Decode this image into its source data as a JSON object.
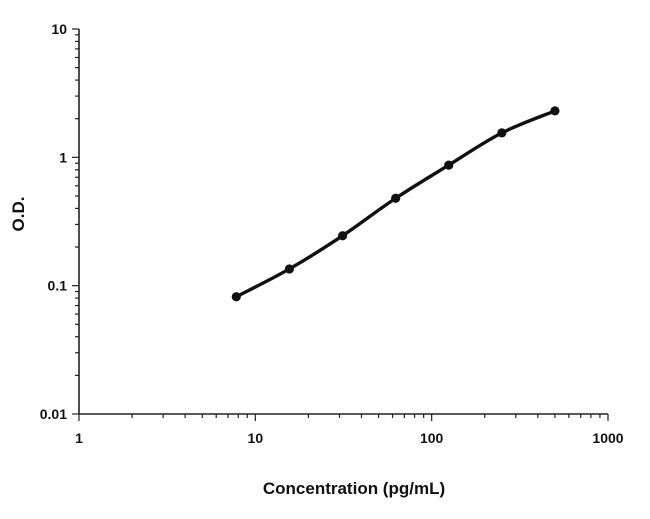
{
  "chart_data": {
    "type": "line",
    "title": "",
    "xlabel": "Concentration (pg/mL)",
    "ylabel": "O.D.",
    "x_scale": "log",
    "y_scale": "log",
    "xlim": [
      1,
      1000
    ],
    "ylim": [
      0.01,
      10
    ],
    "x_ticks": [
      "1",
      "10",
      "100",
      "1000"
    ],
    "y_ticks": [
      "0.01",
      "0.1",
      "1",
      "10"
    ],
    "grid": false,
    "legend": "none",
    "line_color": "#111111",
    "series": [
      {
        "x": [
          7.8,
          15.6,
          31.25,
          62.5,
          125,
          250,
          500
        ],
        "y": [
          0.082,
          0.135,
          0.245,
          0.48,
          0.87,
          1.55,
          2.3
        ]
      }
    ]
  }
}
